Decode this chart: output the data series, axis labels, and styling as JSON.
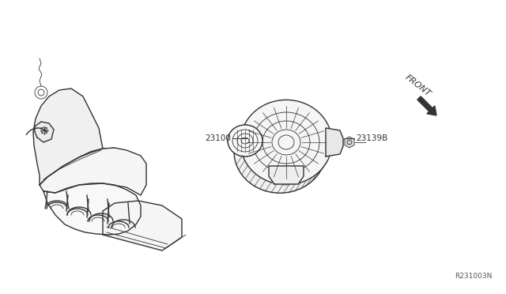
{
  "bg_color": "#ffffff",
  "line_color": "#333333",
  "label_23100": "23100",
  "label_23139B": "23139B",
  "label_front": "FRONT",
  "ref_number": "R231003N",
  "fig_width": 6.4,
  "fig_height": 3.72,
  "dpi": 100
}
